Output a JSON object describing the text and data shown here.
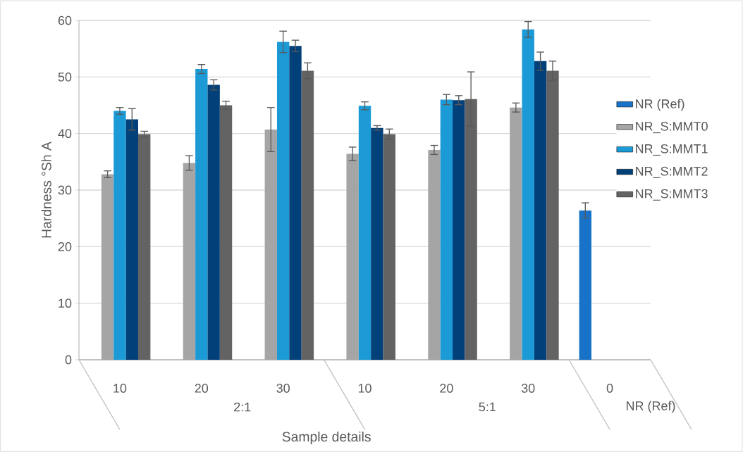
{
  "chart_data": {
    "type": "bar",
    "xlabel": "Sample details",
    "ylabel": "Hardness °Sh A",
    "categories": [
      "10",
      "20",
      "30",
      "10",
      "20",
      "30",
      "0"
    ],
    "annotations": [
      "2:1",
      "5:1",
      "NR (Ref)"
    ],
    "series": [
      {
        "name": "NR (Ref)",
        "color": "#1772c8",
        "values": [
          null,
          null,
          null,
          null,
          null,
          null,
          26.4
        ],
        "errors": [
          null,
          null,
          null,
          null,
          null,
          null,
          1.35
        ]
      },
      {
        "name": "NR_S:MMT0",
        "color": "#a5a5a5",
        "values": [
          32.8,
          34.8,
          40.7,
          36.4,
          37.1,
          44.6,
          null
        ],
        "errors": [
          0.6,
          1.3,
          3.9,
          1.2,
          0.8,
          0.8,
          null
        ]
      },
      {
        "name": "NR_S:MMT1",
        "color": "#1b9ad6",
        "values": [
          44.0,
          51.4,
          56.2,
          44.9,
          46.0,
          58.4,
          null
        ],
        "errors": [
          0.6,
          0.8,
          1.9,
          0.7,
          0.9,
          1.4,
          null
        ]
      },
      {
        "name": "NR_S:MMT2",
        "color": "#024079",
        "values": [
          42.5,
          48.6,
          55.5,
          41.0,
          45.9,
          52.8,
          null
        ],
        "errors": [
          1.9,
          0.9,
          1.0,
          0.4,
          0.8,
          1.6,
          null
        ]
      },
      {
        "name": "NR_S:MMT3",
        "color": "#636363",
        "values": [
          39.9,
          45.0,
          51.1,
          39.9,
          46.1,
          51.1,
          null
        ],
        "errors": [
          0.5,
          0.7,
          1.4,
          0.9,
          4.8,
          1.7,
          null
        ]
      }
    ],
    "ylim": [
      0,
      60
    ],
    "yticks": [
      0,
      10,
      20,
      30,
      40,
      50,
      60
    ],
    "grid": "y",
    "legend": "right"
  }
}
